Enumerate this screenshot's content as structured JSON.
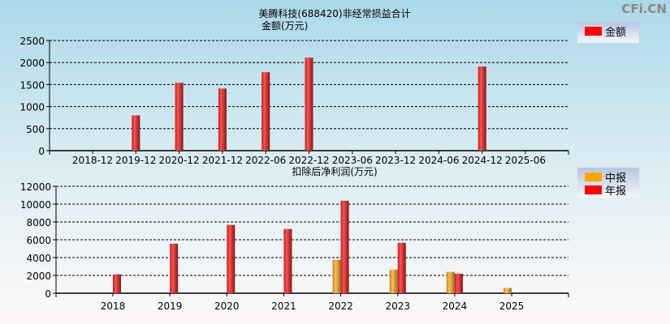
{
  "watermark": "CFi.CN",
  "chart_data": [
    {
      "type": "bar",
      "title": "美腾科技(688420)非经常损益合计",
      "subtitle": "金额(万元)",
      "categories": [
        "2018-12",
        "2019-12",
        "2020-12",
        "2021-12",
        "2022-06",
        "2022-12",
        "2023-06",
        "2023-12",
        "2024-06",
        "2024-12",
        "2025-06"
      ],
      "series": [
        {
          "name": "金额",
          "color": "#ff0000",
          "values": [
            0,
            800,
            1540,
            1410,
            1780,
            2110,
            0,
            0,
            0,
            1910,
            0
          ]
        }
      ],
      "ylim": [
        0,
        2500
      ],
      "yticks": [
        0,
        500,
        1000,
        1500,
        2000,
        2500
      ],
      "grid": true,
      "legend": "top-right"
    },
    {
      "type": "bar",
      "title": "扣除后净利润(万元)",
      "categories": [
        "2018",
        "2019",
        "2020",
        "2021",
        "2022",
        "2023",
        "2024",
        "2025"
      ],
      "series": [
        {
          "name": "中报",
          "color": "#ffa500",
          "values": [
            null,
            null,
            null,
            null,
            3760,
            2650,
            2400,
            580
          ]
        },
        {
          "name": "年报",
          "color": "#ff0000",
          "values": [
            2120,
            5560,
            7670,
            7210,
            10380,
            5660,
            2200,
            null
          ]
        }
      ],
      "ylim": [
        0,
        12000
      ],
      "yticks": [
        0,
        2000,
        4000,
        6000,
        8000,
        10000,
        12000
      ],
      "grid": true,
      "legend": "top-right"
    }
  ]
}
